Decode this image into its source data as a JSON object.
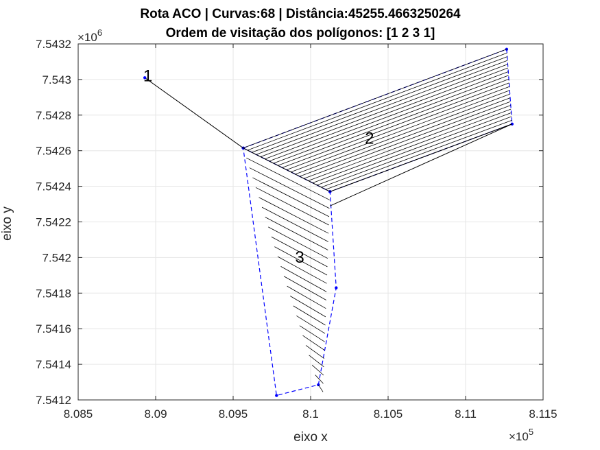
{
  "figure": {
    "title_line1": "Rota ACO | Curvas:68 | Distância:45255.4663250264",
    "title_line2": "Ordem de visitação dos polígonos: [1 2 3 1]",
    "y_multiplier_base": "×10",
    "y_multiplier_exp": "6",
    "x_multiplier_base": "×10",
    "x_multiplier_exp": "5"
  },
  "chart_data": {
    "type": "line",
    "title": "Rota ACO | Curvas:68 | Distância:45255.4663250264\nOrdem de visitação dos polígonos: [1 2 3 1]",
    "xlabel": "eixo x",
    "ylabel": "eixo y",
    "xlim": [
      808500,
      811500
    ],
    "ylim": [
      7541200,
      7543200
    ],
    "grid": true,
    "xticks": [
      808500,
      809000,
      809500,
      810000,
      810500,
      811000,
      811500
    ],
    "xtick_labels": [
      "8.085",
      "8.09",
      "8.095",
      "8.1",
      "8.105",
      "8.11",
      "8.115"
    ],
    "yticks": [
      7541200,
      7541400,
      7541600,
      7541800,
      7542000,
      7542200,
      7542400,
      7542600,
      7542800,
      7543000,
      7543200
    ],
    "ytick_labels": [
      "7.5412",
      "7.5414",
      "7.5416",
      "7.5418",
      "7.542",
      "7.5422",
      "7.5424",
      "7.5426",
      "7.5428",
      "7.543",
      "7.5432"
    ],
    "polygon_labels": [
      {
        "text": "1",
        "x": 808920,
        "y": 7542990
      },
      {
        "text": "2",
        "x": 810350,
        "y": 7542640
      },
      {
        "text": "3",
        "x": 809900,
        "y": 7541970
      }
    ],
    "polygons": [
      {
        "id": 2,
        "color": "#0000ff",
        "points": [
          [
            809565,
            7542615
          ],
          [
            811265,
            7543170
          ],
          [
            811300,
            7542750
          ],
          [
            810125,
            7542370
          ],
          [
            809565,
            7542615
          ]
        ]
      },
      {
        "id": 3,
        "color": "#0000ff",
        "points": [
          [
            809565,
            7542615
          ],
          [
            810125,
            7542370
          ],
          [
            810165,
            7541830
          ],
          [
            810050,
            7541285
          ],
          [
            809780,
            7541225
          ],
          [
            809565,
            7542615
          ]
        ]
      }
    ],
    "route": {
      "color": "#000000",
      "points": [
        [
          808930,
          7543010
        ],
        [
          809565,
          7542615
        ],
        [
          810125,
          7542370
        ],
        [
          811300,
          7542750
        ],
        [
          810125,
          7542290
        ]
      ]
    },
    "hatching": [
      {
        "polygon": 2,
        "count": 20
      },
      {
        "polygon": 3,
        "count": 24
      }
    ]
  }
}
